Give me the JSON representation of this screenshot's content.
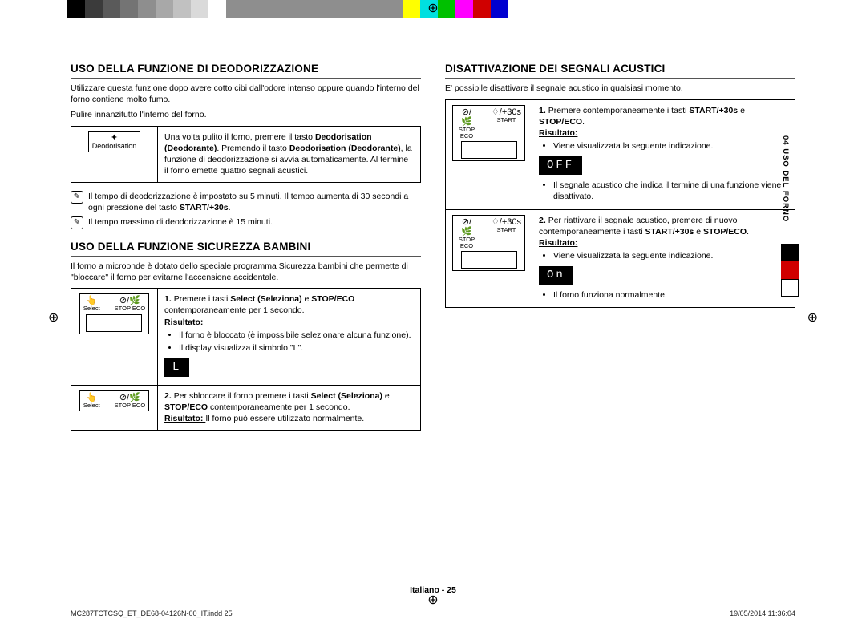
{
  "color_bar_top": [
    "#000000",
    "#3b3b3b",
    "#5a5a5a",
    "#747474",
    "#8e8e8e",
    "#a8a8a8",
    "#c1c1c1",
    "#dadada",
    "#ffffff",
    "#8e8e8e",
    "#8e8e8e",
    "#8e8e8e",
    "#8e8e8e",
    "#8e8e8e",
    "#8e8e8e",
    "#8e8e8e",
    "#8e8e8e",
    "#8e8e8e",
    "#8e8e8e",
    "#ffff00",
    "#00e0e0",
    "#00c000",
    "#ff00ff",
    "#d00000",
    "#0000d0"
  ],
  "side_label": "04  USO DEL FORNO",
  "side_swatches": [
    "#000000",
    "#d00000",
    "#ffffff"
  ],
  "sec1": {
    "title": "USO DELLA FUNZIONE DI DEODORIZZAZIONE",
    "intro1": "Utilizzare questa funzione dopo avere cotto cibi dall'odore intenso oppure quando l'interno del forno contiene molto fumo.",
    "intro2": "Pulire innanzitutto l'interno del forno.",
    "panel_label": "Deodorisation",
    "step_text": "Una volta pulito il forno, premere il tasto ",
    "deod_bold": "Deodorisation (Deodorante)",
    "step_text2": ". Premendo il tasto ",
    "step_text3": ", la funzione di deodorizzazione si avvia automaticamente. Al termine il forno emette quattro segnali acustici.",
    "note1_a": "Il tempo di deodorizzazione è impostato su 5 minuti. Il tempo aumenta di 30 secondi a ogni pressione del tasto ",
    "note1_b": "START/+30s",
    "note2": "Il tempo massimo di deodorizzazione è 15 minuti."
  },
  "sec2": {
    "title": "USO DELLA FUNZIONE SICUREZZA BAMBINI",
    "intro": "Il forno a microonde è dotato dello speciale programma Sicurezza bambini che permette di \"bloccare\" il forno per evitarne l'accensione accidentale.",
    "btn_select": "Select",
    "btn_stop": "STOP  ECO",
    "num1": "1.",
    "step1a": "Premere i tasti ",
    "select_bold": "Select (Seleziona)",
    "and": " e ",
    "stop_bold": "STOP/ECO",
    "step1b": " contemporaneamente per 1 secondo.",
    "risultato": "Risultato:",
    "b1": "Il forno è bloccato (è impossibile selezionare alcuna funzione).",
    "b2": "Il display visualizza il simbolo \"L\".",
    "lcd1": "L",
    "num2": "2.",
    "step2a": "Per sbloccare il forno premere i tasti ",
    "step2b": " contemporaneamente per 1 secondo.",
    "ris2": "Risultato:  ",
    "ris2_txt": "Il forno può essere utilizzato normalmente."
  },
  "sec3": {
    "title": "DISATTIVAZIONE DEI SEGNALI ACUSTICI",
    "intro": "E' possibile disattivare il segnale acustico in qualsiasi momento.",
    "btn_stop": "STOP  ECO",
    "btn_start": "START",
    "btn_start_sym": "♢/+30s",
    "num1": "1.",
    "step1a": "Premere contemporaneamente i tasti ",
    "start_bold": "START/+30s",
    "and": " e ",
    "stop_bold": "STOP/ECO",
    "risultato": "Risultato:",
    "b1": "Viene visualizzata la seguente indicazione.",
    "lcd1": "OFF",
    "b2": "Il segnale acustico che indica il termine di una funzione viene disattivato.",
    "num2": "2.",
    "step2a": "Per riattivare il segnale acustico, premere di nuovo contemporaneamente i tasti ",
    "b3": "Viene visualizzata la seguente indicazione.",
    "lcd2": "On",
    "b4": "Il forno funziona normalmente."
  },
  "footer": "Italiano - 25",
  "print_left": "MC287TCTCSQ_ET_DE68-04126N-00_IT.indd   25",
  "print_right": "19/05/2014   11:36:04"
}
